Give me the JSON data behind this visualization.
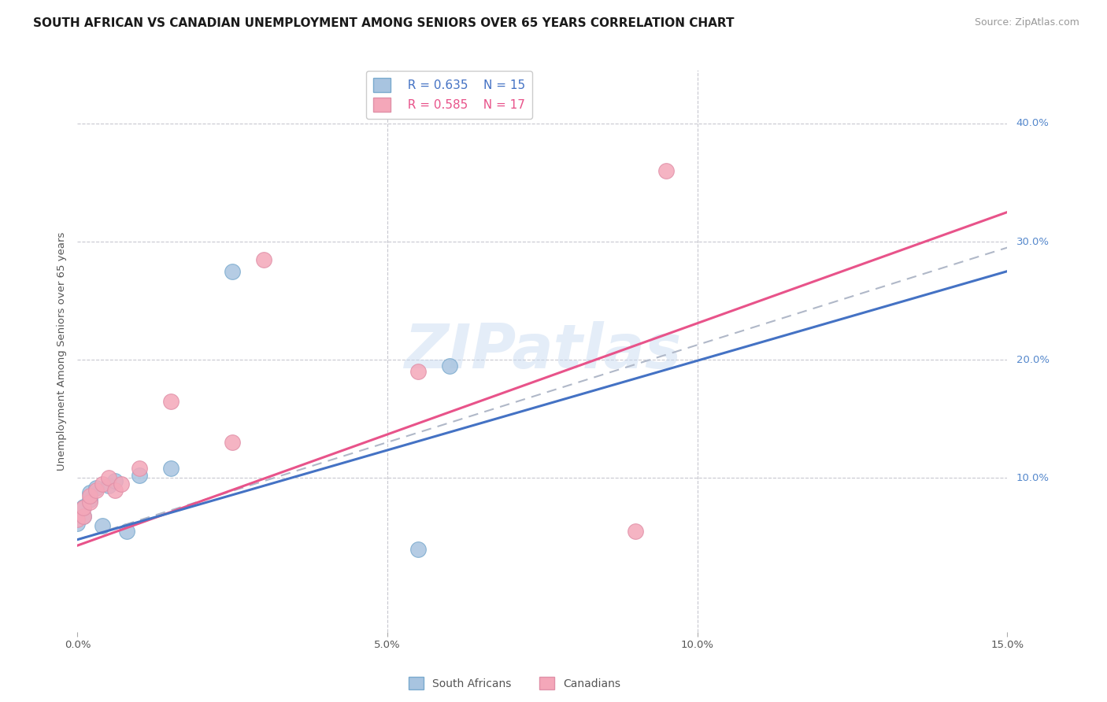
{
  "title": "SOUTH AFRICAN VS CANADIAN UNEMPLOYMENT AMONG SENIORS OVER 65 YEARS CORRELATION CHART",
  "source": "Source: ZipAtlas.com",
  "ylabel": "Unemployment Among Seniors over 65 years",
  "xlim": [
    0.0,
    0.15
  ],
  "ylim": [
    -0.03,
    0.445
  ],
  "xticks": [
    0.0,
    0.05,
    0.1,
    0.15
  ],
  "xtick_labels": [
    "0.0%",
    "5.0%",
    "10.0%",
    "15.0%"
  ],
  "ytick_labels": [
    "10.0%",
    "20.0%",
    "30.0%",
    "40.0%"
  ],
  "yticks": [
    0.1,
    0.2,
    0.3,
    0.4
  ],
  "sa_R": 0.635,
  "sa_N": 15,
  "ca_R": 0.585,
  "ca_N": 17,
  "sa_color": "#a8c4e0",
  "ca_color": "#f4a7b9",
  "sa_line_color": "#4472c4",
  "ca_line_color": "#e8538a",
  "dashed_color": "#b0b8c8",
  "watermark": "ZIPatlas",
  "background_color": "#ffffff",
  "grid_color": "#c8c8d0",
  "sa_x": [
    0.0,
    0.001,
    0.001,
    0.002,
    0.002,
    0.003,
    0.004,
    0.005,
    0.006,
    0.008,
    0.01,
    0.015,
    0.025,
    0.055,
    0.06
  ],
  "sa_y": [
    0.062,
    0.068,
    0.076,
    0.082,
    0.088,
    0.092,
    0.06,
    0.094,
    0.098,
    0.055,
    0.102,
    0.108,
    0.275,
    0.04,
    0.195
  ],
  "ca_x": [
    0.0,
    0.001,
    0.001,
    0.002,
    0.002,
    0.003,
    0.004,
    0.005,
    0.006,
    0.007,
    0.01,
    0.015,
    0.025,
    0.03,
    0.055,
    0.09,
    0.095
  ],
  "ca_y": [
    0.065,
    0.068,
    0.075,
    0.08,
    0.085,
    0.09,
    0.095,
    0.1,
    0.09,
    0.095,
    0.108,
    0.165,
    0.13,
    0.285,
    0.19,
    0.055,
    0.36
  ],
  "sa_line_x0": 0.0,
  "sa_line_y0": 0.048,
  "sa_line_x1": 0.15,
  "sa_line_y1": 0.275,
  "ca_line_x0": 0.0,
  "ca_line_y0": 0.043,
  "ca_line_x1": 0.15,
  "ca_line_y1": 0.325,
  "dash_line_x0": 0.0,
  "dash_line_y0": 0.048,
  "dash_line_x1": 0.15,
  "dash_line_y1": 0.295
}
